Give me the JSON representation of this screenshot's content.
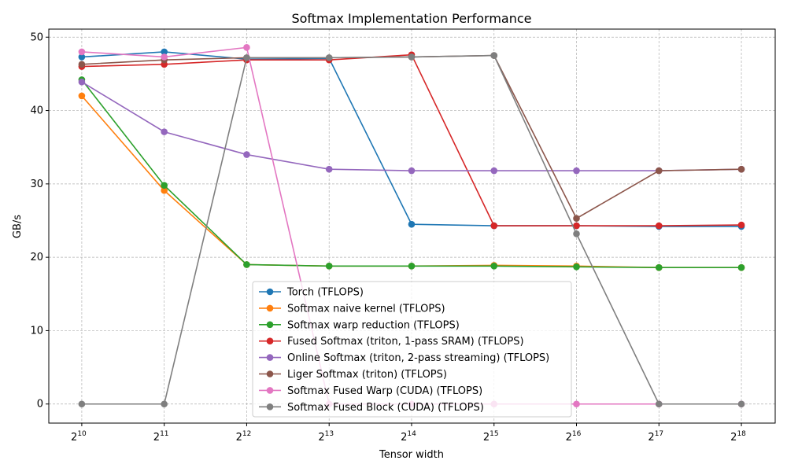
{
  "chart_data": {
    "type": "line",
    "title": "Softmax Implementation Performance",
    "xlabel": "Tensor width",
    "ylabel": "GB/s",
    "x_scale": "log2",
    "x": [
      1024,
      2048,
      4096,
      8192,
      16384,
      32768,
      65536,
      131072,
      262144
    ],
    "x_tick_labels": [
      {
        "base": "2",
        "exp": "10"
      },
      {
        "base": "2",
        "exp": "11"
      },
      {
        "base": "2",
        "exp": "12"
      },
      {
        "base": "2",
        "exp": "13"
      },
      {
        "base": "2",
        "exp": "14"
      },
      {
        "base": "2",
        "exp": "15"
      },
      {
        "base": "2",
        "exp": "16"
      },
      {
        "base": "2",
        "exp": "17"
      },
      {
        "base": "2",
        "exp": "18"
      }
    ],
    "y_ticks": [
      0,
      10,
      20,
      30,
      40,
      50
    ],
    "ylim": [
      -2.6,
      51.1
    ],
    "grid": true,
    "legend_placement": "lower-center",
    "series": [
      {
        "name": "Torch (TFLOPS)",
        "color": "#1f77b4",
        "values": [
          47.3,
          48.0,
          47.0,
          47.1,
          24.5,
          24.3,
          24.3,
          24.2,
          24.2
        ]
      },
      {
        "name": "Softmax naive kernel (TFLOPS)",
        "color": "#ff7f0e",
        "values": [
          42.0,
          29.1,
          19.0,
          18.8,
          18.8,
          18.9,
          18.8,
          18.6,
          18.6
        ]
      },
      {
        "name": "Softmax warp reduction (TFLOPS)",
        "color": "#2ca02c",
        "values": [
          44.2,
          29.8,
          19.0,
          18.8,
          18.8,
          18.8,
          18.7,
          18.6,
          18.6
        ]
      },
      {
        "name": "Fused Softmax (triton, 1-pass SRAM) (TFLOPS)",
        "color": "#d62728",
        "values": [
          46.0,
          46.3,
          46.9,
          46.9,
          47.6,
          24.3,
          24.3,
          24.3,
          24.4
        ]
      },
      {
        "name": "Online Softmax (triton, 2-pass streaming) (TFLOPS)",
        "color": "#9467bd",
        "values": [
          43.9,
          37.1,
          34.0,
          32.0,
          31.8,
          31.8,
          31.8,
          31.8,
          32.0
        ]
      },
      {
        "name": "Liger Softmax (triton) (TFLOPS)",
        "color": "#8c564b",
        "values": [
          46.3,
          46.9,
          47.2,
          47.2,
          47.3,
          47.5,
          25.3,
          31.8,
          32.0
        ]
      },
      {
        "name": "Softmax Fused Warp (CUDA) (TFLOPS)",
        "color": "#e377c2",
        "values": [
          48.0,
          47.3,
          48.6,
          0,
          0,
          0,
          0,
          0,
          0
        ]
      },
      {
        "name": "Softmax Fused Block (CUDA) (TFLOPS)",
        "color": "#7f7f7f",
        "values": [
          0,
          0,
          47.2,
          47.2,
          47.3,
          47.5,
          23.2,
          0,
          0
        ]
      }
    ]
  }
}
